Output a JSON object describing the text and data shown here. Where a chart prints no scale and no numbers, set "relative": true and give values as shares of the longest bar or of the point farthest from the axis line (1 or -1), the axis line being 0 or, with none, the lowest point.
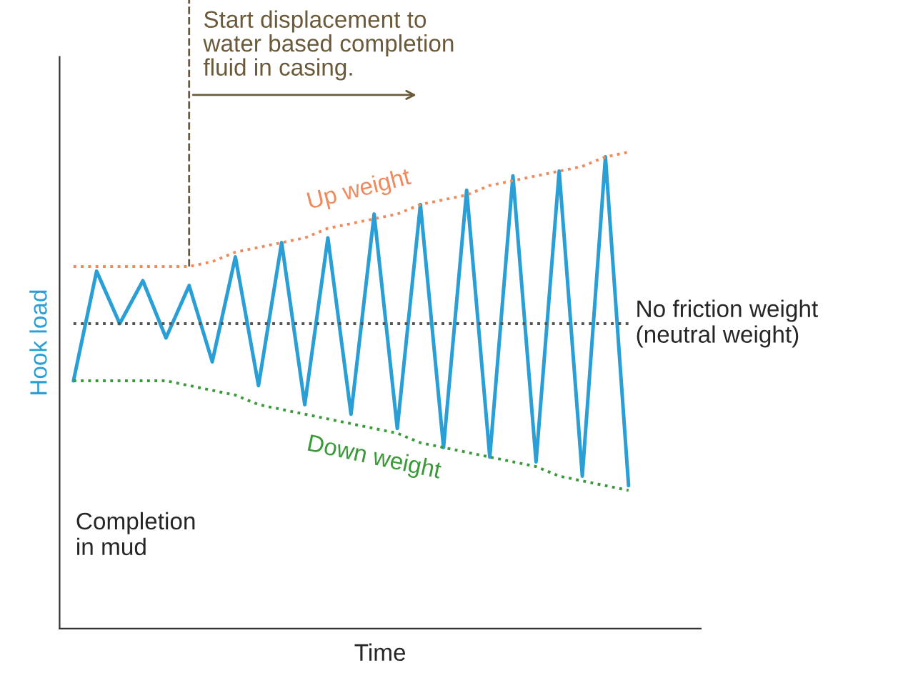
{
  "chart_data": {
    "type": "line",
    "relative": true,
    "xlabel": "Time",
    "ylabel": "Hook load",
    "categories": [
      null,
      null,
      null,
      null,
      null,
      null,
      null,
      null,
      null,
      null,
      null,
      null,
      null,
      null,
      null,
      null,
      null,
      null,
      null,
      null,
      null,
      null,
      null,
      null,
      null
    ],
    "series": [
      {
        "color": "#2a9fd6",
        "line_style": "solid",
        "values": [
          0.52,
          0.75,
          0.64,
          0.73,
          0.61,
          0.72,
          0.56,
          0.78,
          0.51,
          0.81,
          0.47,
          0.82,
          0.45,
          0.87,
          0.42,
          0.89,
          0.38,
          0.92,
          0.36,
          0.95,
          0.35,
          0.96,
          0.32,
          0.99,
          0.3
        ]
      },
      {
        "name": "Up weight",
        "color": "#f08a5d",
        "line_style": "dotted",
        "values": [
          0.76,
          0.76,
          0.76,
          0.76,
          0.76,
          0.76,
          0.77,
          0.79,
          0.8,
          0.81,
          0.82,
          0.84,
          0.85,
          0.86,
          0.87,
          0.89,
          0.9,
          0.91,
          0.93,
          0.94,
          0.95,
          0.96,
          0.97,
          0.99,
          1.0
        ]
      },
      {
        "name": "Down weight",
        "color": "#3a9a3a",
        "line_style": "dotted",
        "values": [
          0.52,
          0.52,
          0.52,
          0.52,
          0.52,
          0.51,
          0.5,
          0.49,
          0.47,
          0.46,
          0.45,
          0.44,
          0.43,
          0.42,
          0.41,
          0.39,
          0.38,
          0.37,
          0.36,
          0.35,
          0.34,
          0.32,
          0.31,
          0.3,
          0.29
        ]
      },
      {
        "name": "No friction weight\n(neutral weight)",
        "color": "#555555",
        "line_style": "dotted",
        "values": [
          0.64,
          0.64,
          0.64,
          0.64,
          0.64,
          0.64,
          0.64,
          0.64,
          0.64,
          0.64,
          0.64,
          0.64,
          0.64,
          0.64,
          0.64,
          0.64,
          0.64,
          0.64,
          0.64,
          0.64,
          0.64,
          0.64,
          0.64,
          0.64,
          0.64
        ]
      }
    ],
    "annotations": [
      "Start displacement to\nwater based completion\nfluid in casing.",
      "Completion\nin mud"
    ]
  }
}
